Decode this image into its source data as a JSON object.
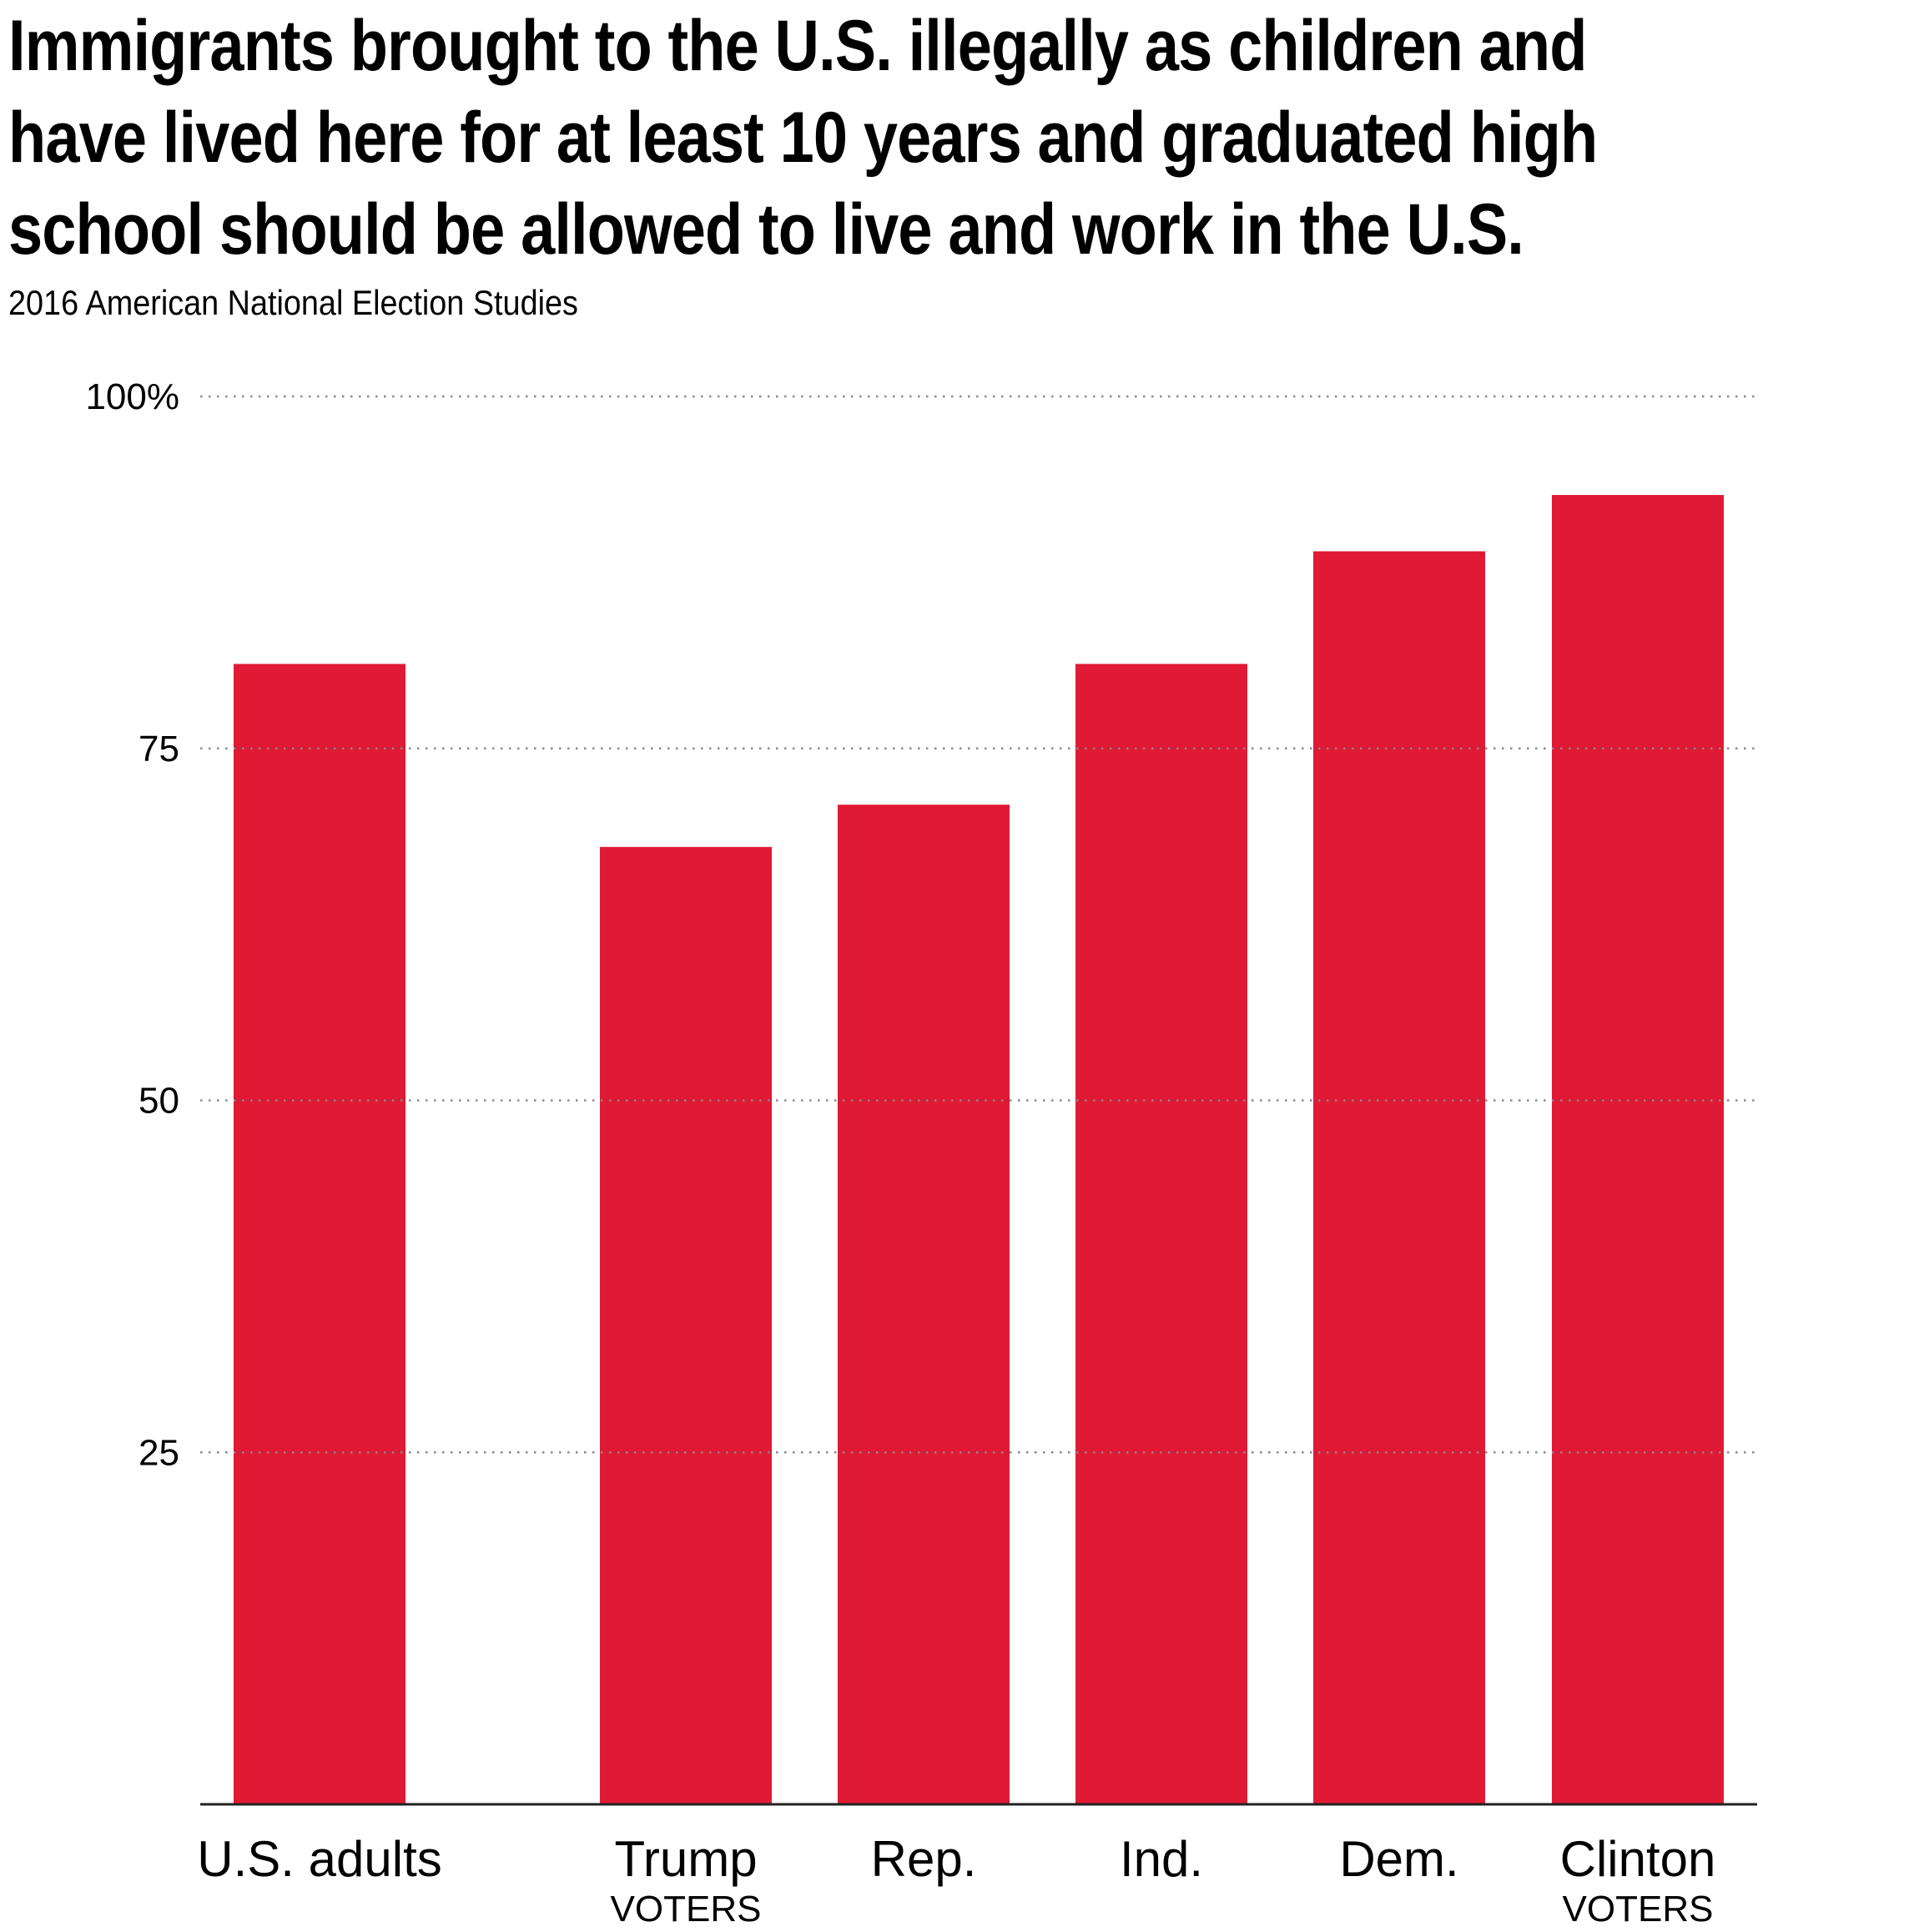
{
  "chart_data": {
    "type": "bar",
    "title": "Immigrants brought to the U.S. illegally as children and have lived here for at least 10 years and graduated high school should be allowed to live and work in the U.S.",
    "title_lines": [
      "Immigrants brought to the U.S. illegally as children and",
      "have lived here for at least 10 years and graduated high",
      "school should be allowed to live and work in the U.S."
    ],
    "subtitle": "2016 American National Election Studies",
    "xlabel": "",
    "ylabel": "",
    "ylim": [
      0,
      100
    ],
    "yticks": [
      25,
      50,
      75,
      100
    ],
    "ytick_labels": [
      "25",
      "50",
      "75",
      "100%"
    ],
    "grid": true,
    "categories": [
      "U.S. adults",
      "Trump",
      "Rep.",
      "Ind.",
      "Dem.",
      "Clinton"
    ],
    "category_sublabels": [
      "",
      "VOTERS",
      "",
      "",
      "",
      "VOTERS"
    ],
    "values": [
      81,
      68,
      71,
      81,
      89,
      93
    ],
    "bar_color": "#e01a35",
    "gridline_color": "#888888",
    "axis_color": "#222222"
  }
}
